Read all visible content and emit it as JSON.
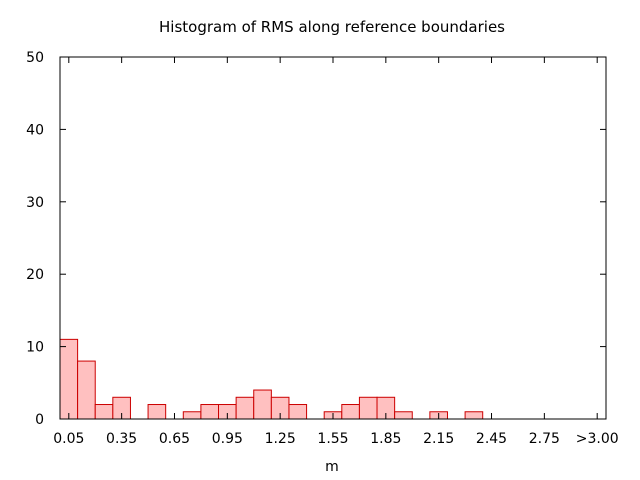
{
  "chart_data": {
    "type": "bar",
    "title": "Histogram of RMS along reference boundaries",
    "xlabel": "m",
    "ylabel": "",
    "ylim": [
      0,
      50
    ],
    "yticks": [
      "0",
      "10",
      "20",
      "30",
      "40",
      "50"
    ],
    "xticks": [
      "0.05",
      "0.35",
      "0.65",
      "0.95",
      "1.25",
      "1.55",
      "1.85",
      "2.15",
      "2.45",
      "2.75",
      ">3.00"
    ],
    "bin_width": 0.1,
    "categories": [
      "0.0-0.1",
      "0.1-0.2",
      "0.2-0.3",
      "0.3-0.4",
      "0.4-0.5",
      "0.5-0.6",
      "0.6-0.7",
      "0.7-0.8",
      "0.8-0.9",
      "0.9-1.0",
      "1.0-1.1",
      "1.1-1.2",
      "1.2-1.3",
      "1.3-1.4",
      "1.4-1.5",
      "1.5-1.6",
      "1.6-1.7",
      "1.7-1.8",
      "1.8-1.9",
      "1.9-2.0",
      "2.0-2.1",
      "2.1-2.2",
      "2.2-2.3",
      "2.3-2.4",
      "2.4-2.5",
      "2.5-2.6",
      "2.6-2.7",
      "2.7-2.8",
      "2.8-2.9",
      "2.9-3.0",
      ">3.00"
    ],
    "values": [
      11,
      8,
      2,
      3,
      0,
      2,
      0,
      1,
      2,
      2,
      3,
      4,
      3,
      2,
      0,
      1,
      2,
      3,
      3,
      1,
      0,
      1,
      0,
      1,
      0,
      0,
      0,
      0,
      0,
      0,
      0
    ],
    "grid": false,
    "legend": "none",
    "colors": {
      "bar_fill": "#ffc0c0",
      "bar_edge": "#cc0000",
      "axis": "#000000"
    }
  }
}
